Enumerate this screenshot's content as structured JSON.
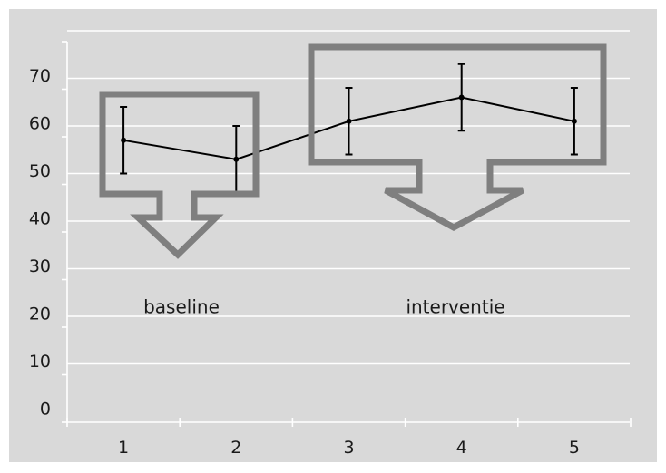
{
  "chart_data": {
    "type": "line",
    "x": [
      1,
      2,
      3,
      4,
      5
    ],
    "y": [
      57,
      53,
      61,
      66,
      61
    ],
    "error_low": [
      50,
      46,
      54,
      59,
      54
    ],
    "error_high": [
      64,
      60,
      68,
      73,
      68
    ],
    "xlim": [
      0,
      5
    ],
    "ylim": [
      -4,
      74
    ],
    "y_ticks": [
      0,
      10,
      20,
      30,
      40,
      50,
      60,
      70
    ],
    "x_ticks": [
      1,
      2,
      3,
      4,
      5
    ],
    "title": "",
    "xlabel": "",
    "ylabel": "",
    "grid": "horizontal",
    "annotations": [
      {
        "label": "baseline",
        "covers_x": [
          1,
          2
        ]
      },
      {
        "label": "interventie",
        "covers_x": [
          3,
          4,
          5
        ]
      }
    ],
    "colors": {
      "background": "#d9d9d9",
      "gridline": "#ffffff",
      "series": "#000000",
      "callout_border": "#7f7f7f"
    }
  }
}
